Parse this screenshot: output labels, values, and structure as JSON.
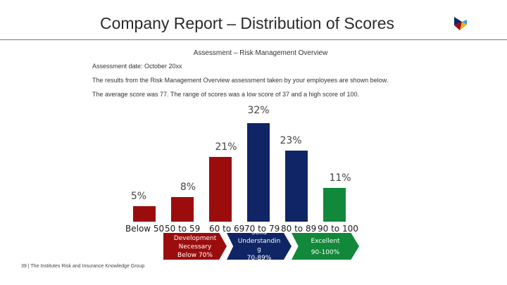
{
  "header": {
    "title": "Company Report – Distribution of Scores"
  },
  "report": {
    "subtitle": "Assessment – Risk Management Overview",
    "date_line": "Assessment date: October 20xx",
    "results_line": "The results from the Risk Management Overview assessment taken by your employees are shown below.",
    "average_line": "The average score was 77.   The range of scores was a low score of 37 and a high score of 100."
  },
  "chart_data": {
    "type": "bar",
    "categories": [
      "Below 50",
      "50 to 59",
      "60 to 69",
      "70 to 79",
      "80 to 89",
      "90 to 100"
    ],
    "values": [
      5,
      8,
      21,
      32,
      23,
      11
    ],
    "value_labels": [
      "5%",
      "8%",
      "21%",
      "32%",
      "23%",
      "11%"
    ],
    "colors": [
      "#9b0d0d",
      "#9b0d0d",
      "#9b0d0d",
      "#0f2566",
      "#0f2566",
      "#12893a"
    ],
    "ylim": [
      0,
      32
    ],
    "grid": false
  },
  "legend_bands": [
    {
      "lines": [
        "Development",
        "Necessary",
        "Below 70%"
      ],
      "color": "#9b0d0d"
    },
    {
      "lines": [
        "Solid",
        "Understandin",
        "g",
        "70-89%"
      ],
      "color": "#0f2566"
    },
    {
      "lines": [
        "Excellent",
        "",
        "90-100%"
      ],
      "color": "#12893a"
    }
  ],
  "footer": {
    "text": "39 | The Institutes Risk and Insurance Knowledge Group"
  },
  "colors": {
    "red": "#9b0d0d",
    "navy": "#0f2566",
    "green": "#12893a"
  }
}
